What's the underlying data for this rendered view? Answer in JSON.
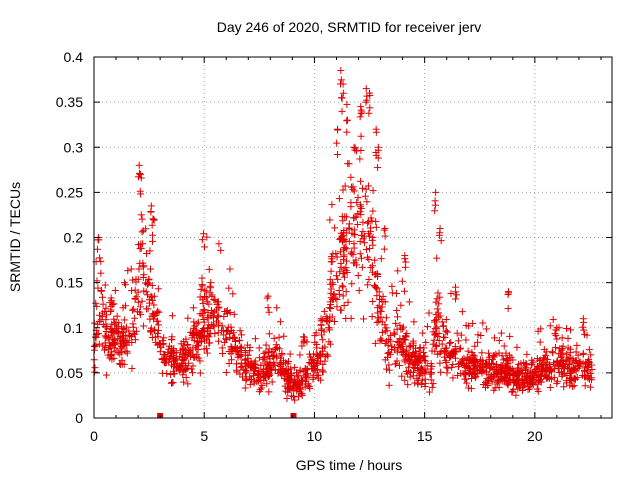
{
  "chart_data": {
    "type": "scatter",
    "title": "Day 246 of 2020, SRMTID for receiver jerv",
    "xlabel": "GPS time / hours",
    "ylabel": "SRMTID / TECUs",
    "xlim": [
      0,
      23.5
    ],
    "ylim": [
      0,
      0.4
    ],
    "xticks": [
      0,
      5,
      10,
      15,
      20
    ],
    "xtick_labels": [
      "0",
      "5",
      "10",
      "15",
      "20"
    ],
    "yticks": [
      0,
      0.05,
      0.1,
      0.15,
      0.2,
      0.25,
      0.3,
      0.35,
      0.4
    ],
    "ytick_labels": [
      "0",
      "0.05",
      "0.1",
      "0.15",
      "0.2",
      "0.25",
      "0.3",
      "0.35",
      "0.4"
    ],
    "grid": true,
    "marker": "+",
    "color": "#e00000",
    "profile": [
      [
        0.0,
        0.07
      ],
      [
        0.3,
        0.14
      ],
      [
        0.5,
        0.1
      ],
      [
        1.0,
        0.085
      ],
      [
        1.5,
        0.08
      ],
      [
        1.9,
        0.12
      ],
      [
        2.1,
        0.17
      ],
      [
        2.5,
        0.13
      ],
      [
        2.8,
        0.1
      ],
      [
        3.2,
        0.07
      ],
      [
        3.8,
        0.055
      ],
      [
        4.3,
        0.07
      ],
      [
        4.8,
        0.1
      ],
      [
        5.5,
        0.11
      ],
      [
        6.0,
        0.1
      ],
      [
        6.5,
        0.07
      ],
      [
        7.0,
        0.055
      ],
      [
        7.5,
        0.05
      ],
      [
        8.0,
        0.055
      ],
      [
        8.4,
        0.065
      ],
      [
        8.8,
        0.04
      ],
      [
        9.2,
        0.035
      ],
      [
        9.6,
        0.045
      ],
      [
        10.0,
        0.055
      ],
      [
        10.4,
        0.075
      ],
      [
        10.8,
        0.13
      ],
      [
        11.3,
        0.19
      ],
      [
        11.8,
        0.2
      ],
      [
        12.3,
        0.2
      ],
      [
        12.7,
        0.18
      ],
      [
        13.0,
        0.11
      ],
      [
        13.4,
        0.07
      ],
      [
        13.8,
        0.09
      ],
      [
        14.2,
        0.07
      ],
      [
        14.8,
        0.055
      ],
      [
        15.3,
        0.06
      ],
      [
        15.6,
        0.11
      ],
      [
        16.0,
        0.075
      ],
      [
        16.5,
        0.06
      ],
      [
        17.5,
        0.055
      ],
      [
        18.5,
        0.05
      ],
      [
        19.5,
        0.045
      ],
      [
        20.5,
        0.055
      ],
      [
        21.2,
        0.06
      ],
      [
        21.8,
        0.055
      ],
      [
        22.6,
        0.05
      ]
    ],
    "spikes": [
      [
        0.2,
        0.2
      ],
      [
        2.05,
        0.28
      ],
      [
        2.1,
        0.27
      ],
      [
        2.6,
        0.235
      ],
      [
        2.7,
        0.22
      ],
      [
        4.9,
        0.155
      ],
      [
        5.3,
        0.15
      ],
      [
        7.9,
        0.135
      ],
      [
        11.05,
        0.32
      ],
      [
        11.2,
        0.385
      ],
      [
        11.3,
        0.37
      ],
      [
        11.5,
        0.33
      ],
      [
        11.8,
        0.3
      ],
      [
        12.1,
        0.345
      ],
      [
        12.35,
        0.365
      ],
      [
        12.5,
        0.36
      ],
      [
        12.8,
        0.32
      ],
      [
        12.9,
        0.3
      ],
      [
        13.2,
        0.21
      ],
      [
        14.1,
        0.18
      ],
      [
        15.5,
        0.25
      ],
      [
        15.7,
        0.21
      ],
      [
        16.4,
        0.145
      ],
      [
        18.8,
        0.14
      ],
      [
        21.0,
        0.1
      ],
      [
        22.2,
        0.11
      ],
      [
        0.8,
        0.13
      ],
      [
        9.5,
        0.09
      ],
      [
        10.3,
        0.11
      ]
    ],
    "squares": [
      3.0,
      9.05
    ],
    "n_points": 1900
  }
}
